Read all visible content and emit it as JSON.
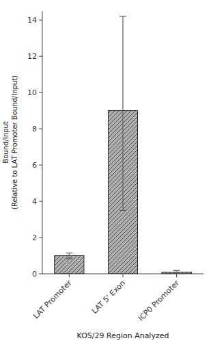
{
  "chart_data": {
    "type": "bar",
    "categories": [
      "LAT Promoter",
      "LAT 5' Exon",
      "ICP0 Promoter"
    ],
    "values": [
      1.0,
      9.0,
      0.1
    ],
    "error_upper": [
      0.15,
      5.2,
      0.08
    ],
    "error_lower": [
      0.15,
      5.5,
      0.08
    ],
    "color": "#b0b0b0",
    "xlabel": "KOS/29 Region Analyzed",
    "ylabel": [
      "Bound/Input",
      "(Relative to LAT Promoter Bound/Input)"
    ],
    "ylim": [
      0,
      14.5
    ],
    "yticks": [
      0,
      2,
      4,
      6,
      8,
      10,
      12,
      14
    ],
    "grid": false
  }
}
